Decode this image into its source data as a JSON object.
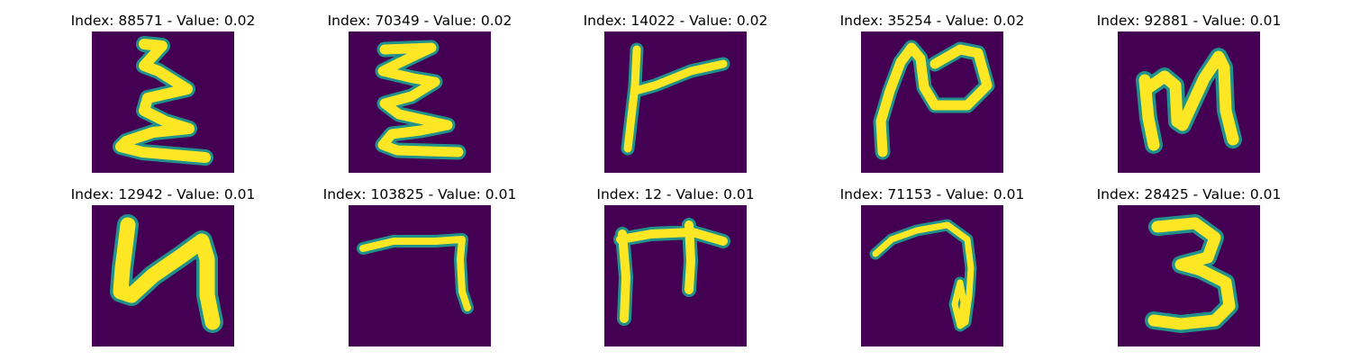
{
  "colors": {
    "background": "#440154",
    "mid": "#21918c",
    "mid_light": "#5ec962",
    "foreground": "#fde725"
  },
  "panels": [
    {
      "title": "Index: 88571 - Value: 0.02",
      "glyph": "epsilon-like-stroke"
    },
    {
      "title": "Index: 70349 - Value: 0.02",
      "glyph": "epsilon-like-stroke"
    },
    {
      "title": "Index: 14022 - Value: 0.02",
      "glyph": "r-like-stroke"
    },
    {
      "title": "Index: 35254 - Value: 0.02",
      "glyph": "n-loop-stroke"
    },
    {
      "title": "Index: 92881 - Value: 0.01",
      "glyph": "n-like-stroke"
    },
    {
      "title": "Index: 12942 - Value: 0.01",
      "glyph": "u-like-stroke"
    },
    {
      "title": "Index: 103825 - Value: 0.01",
      "glyph": "seven-like-stroke"
    },
    {
      "title": "Index: 12 - Value: 0.01",
      "glyph": "f-like-stroke"
    },
    {
      "title": "Index: 71153 - Value: 0.01",
      "glyph": "seven-loop-stroke"
    },
    {
      "title": "Index: 28425 - Value: 0.01",
      "glyph": "three-stroke"
    }
  ]
}
